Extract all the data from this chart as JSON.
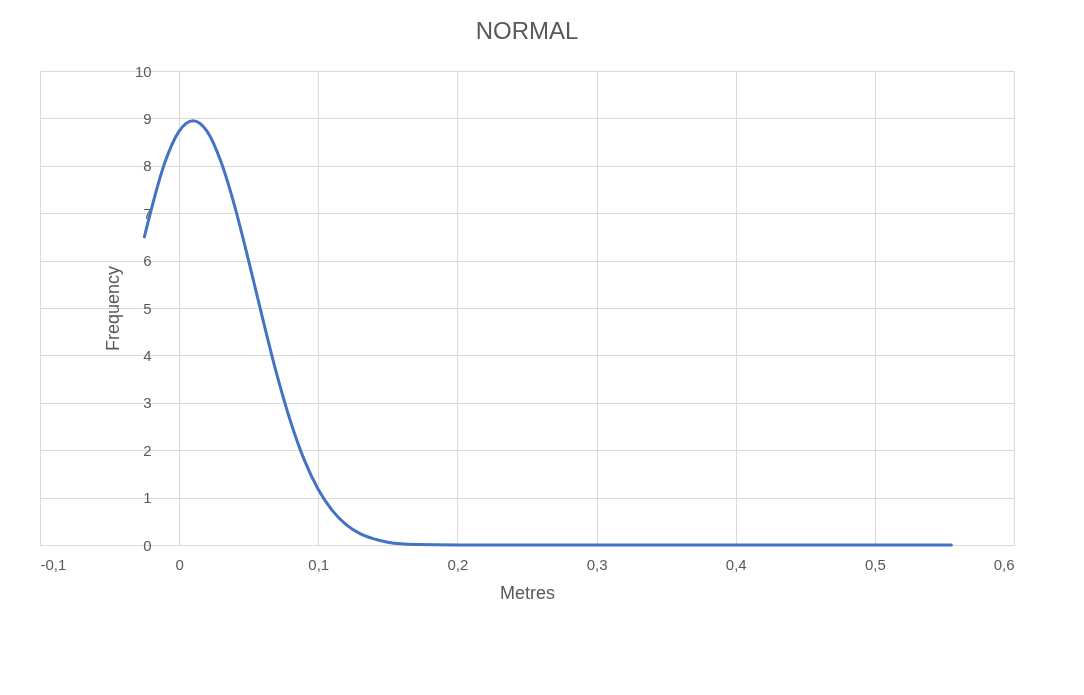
{
  "chart_data": {
    "type": "line",
    "title": "NORMAL",
    "xlabel": "Metres",
    "ylabel": "Frequency",
    "x": [
      -0.025,
      -0.01,
      0,
      0.01,
      0.02,
      0.03,
      0.04,
      0.05,
      0.06,
      0.07,
      0.08,
      0.09,
      0.1,
      0.11,
      0.12,
      0.13,
      0.14,
      0.15,
      0.17,
      0.2,
      0.3,
      0.4,
      0.5,
      0.555
    ],
    "series": [
      {
        "color": "#4472c4",
        "values": [
          6.5,
          8.09,
          8.73,
          8.95,
          8.73,
          8.09,
          7.14,
          5.99,
          4.78,
          3.62,
          2.61,
          1.79,
          1.17,
          0.73,
          0.43,
          0.24,
          0.13,
          0.06,
          0.01,
          0,
          0,
          0,
          0,
          0
        ]
      }
    ],
    "xlim": [
      -0.1,
      0.6
    ],
    "xticks": [
      {
        "value": -0.1,
        "label": "-0,1"
      },
      0,
      {
        "value": 0.1,
        "label": "0,1"
      },
      {
        "value": 0.2,
        "label": "0,2"
      },
      {
        "value": 0.3,
        "label": "0,3"
      },
      {
        "value": 0.4,
        "label": "0,4"
      },
      {
        "value": 0.5,
        "label": "0,5"
      },
      {
        "value": 0.6,
        "label": "0,6"
      }
    ],
    "ylim": [
      0,
      10
    ],
    "yticks": [
      0,
      1,
      2,
      3,
      4,
      5,
      6,
      7,
      8,
      9,
      10
    ],
    "grid": true,
    "legend": false,
    "marker": "none",
    "line_style": "solid"
  }
}
